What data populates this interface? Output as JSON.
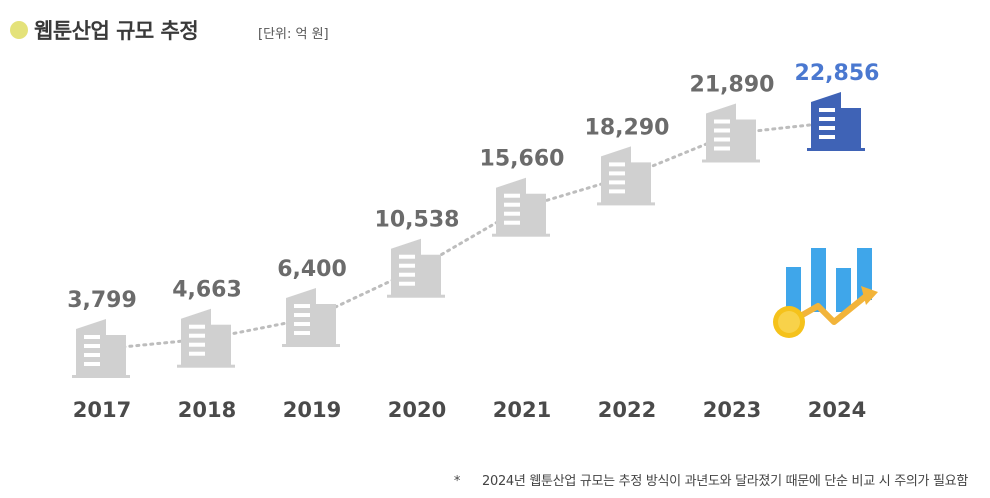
{
  "title": "웹툰산업 규모 추정",
  "unit": "[단위: 억 원]",
  "footnote": {
    "mark": "*",
    "text": "2024년 웹툰산업 규모는 추정 방식이 과년도와 달라졌기 때문에 단순 비교 시 주의가 필요함"
  },
  "colors": {
    "building_gray": "#d0d0d0",
    "building_highlight": "#3f63b6",
    "value_gray": "#6b6b6b",
    "value_highlight": "#4a78d0",
    "dotted_line": "#bdbdbd",
    "title_dot": "#e4e27a",
    "chart_icon_bars": "#3fa6ea",
    "chart_icon_arrow": "#f2b43a",
    "chart_icon_coin": "#f5c21b"
  },
  "icons": [
    "building-icon",
    "growth-chart-icon",
    "coin-icon"
  ],
  "chart_data": {
    "type": "line",
    "categories": [
      "2017",
      "2018",
      "2019",
      "2020",
      "2021",
      "2022",
      "2023",
      "2024"
    ],
    "values": [
      3799,
      4663,
      6400,
      10538,
      15660,
      18290,
      21890,
      22856
    ],
    "value_labels": [
      "3,799",
      "4,663",
      "6,400",
      "10,538",
      "15,660",
      "18,290",
      "21,890",
      "22,856"
    ],
    "highlight_index": 7,
    "title": "웹툰산업 규모 추정",
    "ylabel": "",
    "xlabel": "",
    "grid": false
  }
}
